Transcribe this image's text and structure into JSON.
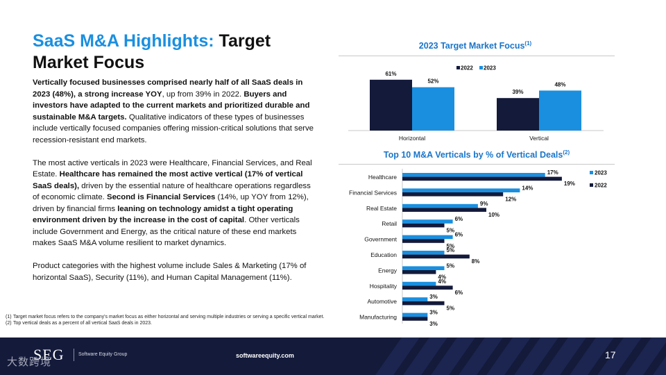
{
  "slide": {
    "title_accent": "SaaS M&A Highlights:",
    "title_rest": " Target Market Focus",
    "page_number": "17",
    "website": "softwareequity.com",
    "logo": "SEG",
    "logo_sub": "Software Equity Group",
    "watermark": "大数跨境"
  },
  "paragraphs": [
    [
      {
        "t": "Vertically focused businesses comprised nearly half of all SaaS deals in 2023 (48%), a strong increase YOY",
        "b": true
      },
      {
        "t": ", up from 39% in 2022. ",
        "b": false
      },
      {
        "t": "Buyers and investors have adapted to the current markets and prioritized durable and sustainable M&A targets.",
        "b": true
      },
      {
        "t": " Qualitative indicators of these types of businesses include vertically focused companies offering mission-critical solutions that serve recession-resistant end markets.",
        "b": false
      }
    ],
    [
      {
        "t": "The most active verticals in 2023 were Healthcare, Financial Services, and Real Estate. ",
        "b": false
      },
      {
        "t": "Healthcare has remained the most active vertical (17% of vertical SaaS deals),",
        "b": true
      },
      {
        "t": " driven by the essential nature of healthcare operations regardless of economic climate. ",
        "b": false
      },
      {
        "t": "Second is Financial Services",
        "b": true
      },
      {
        "t": " (14%, up YOY from 12%), driven by financial firms ",
        "b": false
      },
      {
        "t": "leaning on technology amidst a tight operating environment driven by the increase in the cost of capital",
        "b": true
      },
      {
        "t": ". Other verticals include Government and Energy, as the critical nature of these end markets makes SaaS M&A volume resilient to market dynamics.",
        "b": false
      }
    ],
    [
      {
        "t": "Product categories with the highest volume include Sales & Marketing (17% of horizontal SaaS), Security (11%), and Human Capital Management (11%).",
        "b": false
      }
    ]
  ],
  "footnotes": [
    {
      "num": "(1)",
      "text": "Target market focus refers to the company's market focus as either horizontal and serving multiple industries or serving a specific vertical market."
    },
    {
      "num": "(2)",
      "text": "Top vertical deals as a percent of all vertical SaaS deals in 2023."
    }
  ],
  "chart_data": [
    {
      "type": "bar",
      "title": "2023 Target Market Focus",
      "title_note": "(1)",
      "categories": [
        "Horizontal",
        "Vertical"
      ],
      "series": [
        {
          "name": "2022",
          "values": [
            61,
            39
          ],
          "color": "#131a3a"
        },
        {
          "name": "2023",
          "values": [
            52,
            48
          ],
          "color": "#1a8fe0"
        }
      ],
      "value_suffix": "%",
      "legend": "top-right",
      "ylim": [
        0,
        70
      ]
    },
    {
      "type": "bar",
      "orientation": "horizontal",
      "title": "Top 10 M&A Verticals by % of Vertical Deals",
      "title_note": "(2)",
      "categories": [
        "Healthcare",
        "Financial Services",
        "Real Estate",
        "Retail",
        "Government",
        "Education",
        "Energy",
        "Hospitality",
        "Automotive",
        "Manufacturing"
      ],
      "series": [
        {
          "name": "2023",
          "values": [
            17,
            14,
            9,
            6,
            6,
            5,
            5,
            4,
            3,
            3
          ],
          "color": "#1a8fe0"
        },
        {
          "name": "2022",
          "values": [
            19,
            12,
            10,
            5,
            5,
            8,
            4,
            6,
            5,
            3
          ],
          "color": "#131a3a"
        }
      ],
      "value_suffix": "%",
      "legend": "right",
      "xlim": [
        0,
        20
      ]
    }
  ]
}
